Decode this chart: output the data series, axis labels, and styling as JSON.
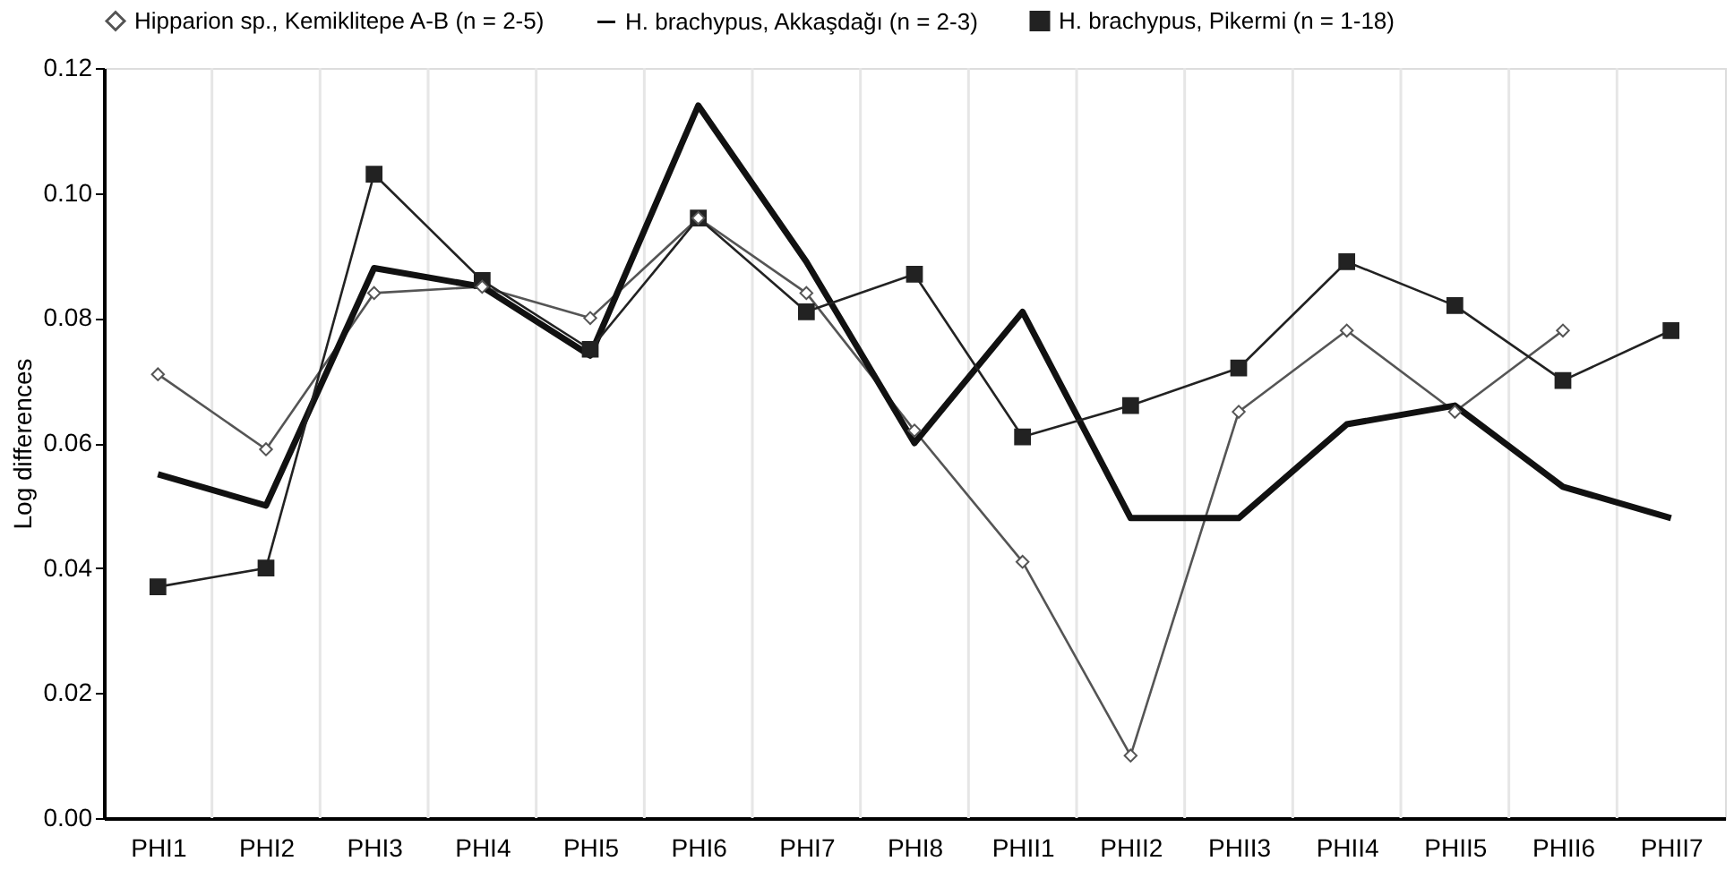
{
  "chart_data": {
    "type": "line",
    "ylabel": "Log differences",
    "categories": [
      "PHI1",
      "PHI2",
      "PHI3",
      "PHI4",
      "PHI5",
      "PHI6",
      "PHI7",
      "PHI8",
      "PHII1",
      "PHII2",
      "PHII3",
      "PHII4",
      "PHII5",
      "PHII6",
      "PHII7"
    ],
    "ylim": [
      0,
      0.12
    ],
    "yticks": [
      {
        "value": 0,
        "label": "0.00"
      },
      {
        "value": 0.02,
        "label": "0.02"
      },
      {
        "value": 0.04,
        "label": "0.04"
      },
      {
        "value": 0.06,
        "label": "0.06"
      },
      {
        "value": 0.08,
        "label": "0.08"
      },
      {
        "value": 0.1,
        "label": "0.10"
      },
      {
        "value": 0.12,
        "label": "0.12"
      }
    ],
    "grid": "x",
    "legend": "top",
    "series": [
      {
        "name": "Hipparion sp., Kemiklitepe A-B (n = 2-5)",
        "color": "#555555",
        "marker": "diamond",
        "values": [
          0.071,
          0.059,
          0.084,
          0.085,
          0.08,
          0.096,
          0.084,
          0.062,
          0.041,
          0.01,
          0.065,
          0.078,
          0.065,
          0.078,
          null
        ]
      },
      {
        "name": "H. brachypus, Akkaşdağı (n = 2-3)",
        "color": "#111111",
        "marker": "none",
        "values": [
          0.055,
          0.05,
          0.088,
          0.085,
          0.074,
          0.114,
          0.089,
          0.06,
          0.081,
          0.048,
          0.048,
          0.063,
          0.066,
          0.053,
          0.048
        ]
      },
      {
        "name": "H. brachypus, Pikermi (n = 1-18)",
        "color": "#222222",
        "marker": "square",
        "values": [
          0.037,
          0.04,
          0.103,
          0.086,
          0.075,
          0.096,
          0.081,
          0.087,
          0.061,
          0.066,
          0.072,
          0.089,
          0.082,
          0.07,
          0.078
        ]
      }
    ]
  }
}
